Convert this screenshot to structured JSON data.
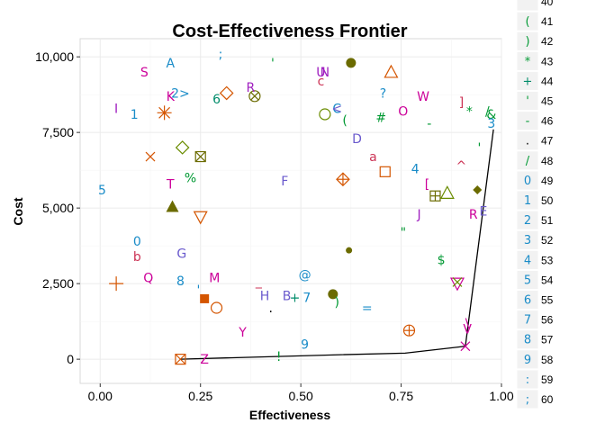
{
  "chart_data": {
    "type": "scatter",
    "title": "Cost-Effectiveness Frontier",
    "xlabel": "Effectiveness",
    "ylabel": "Cost",
    "xlim": [
      -0.05,
      1.0
    ],
    "ylim": [
      -800,
      10600
    ],
    "x_ticks": [
      {
        "value": 0.0,
        "label": "0.00"
      },
      {
        "value": 0.25,
        "label": "0.25"
      },
      {
        "value": 0.5,
        "label": "0.50"
      },
      {
        "value": 0.75,
        "label": "0.75"
      },
      {
        "value": 1.0,
        "label": "1.00"
      }
    ],
    "y_ticks": [
      {
        "value": 0,
        "label": "0"
      },
      {
        "value": 2500,
        "label": "2,500"
      },
      {
        "value": 5000,
        "label": "5,000"
      },
      {
        "value": 7500,
        "label": "7,500"
      },
      {
        "value": 10000,
        "label": "10,000"
      }
    ],
    "grid": true,
    "frontier": [
      {
        "x": 0.2,
        "y": 0
      },
      {
        "x": 0.6,
        "y": 150
      },
      {
        "x": 0.76,
        "y": 200
      },
      {
        "x": 0.91,
        "y": 430
      },
      {
        "x": 0.98,
        "y": 7600
      }
    ],
    "colors": [
      "#cc0099",
      "#1a8cc8",
      "#a020c0",
      "#6a8c00",
      "#d45500",
      "#008c6a",
      "#6a5acd",
      "#009933",
      "#cc3355",
      "#6b6b00"
    ],
    "points": [
      {
        "x": 0.11,
        "y": 9500,
        "glyph": "S",
        "color": "#cc0099"
      },
      {
        "x": 0.175,
        "y": 9800,
        "glyph": "A",
        "color": "#1a8cc8"
      },
      {
        "x": 0.3,
        "y": 10100,
        "glyph": ";",
        "color": "#1a8cc8"
      },
      {
        "x": 0.43,
        "y": 9800,
        "glyph": "'",
        "color": "#009933"
      },
      {
        "x": 0.55,
        "y": 9500,
        "glyph": "U",
        "color": "#a020c0"
      },
      {
        "x": 0.56,
        "y": 9500,
        "glyph": "N",
        "color": "#a020c0"
      },
      {
        "x": 0.55,
        "y": 9200,
        "glyph": "c",
        "color": "#cc3355"
      },
      {
        "x": 0.04,
        "y": 8300,
        "glyph": "I",
        "color": "#a020c0"
      },
      {
        "x": 0.085,
        "y": 8100,
        "glyph": "1",
        "color": "#1a8cc8"
      },
      {
        "x": 0.175,
        "y": 8700,
        "glyph": "K",
        "color": "#cc0099"
      },
      {
        "x": 0.2,
        "y": 8800,
        "glyph": "2>",
        "color": "#1a8cc8"
      },
      {
        "x": 0.29,
        "y": 8600,
        "glyph": "6",
        "color": "#008c6a"
      },
      {
        "x": 0.375,
        "y": 9000,
        "glyph": "R",
        "color": "#a020c0"
      },
      {
        "x": 0.59,
        "y": 8300,
        "glyph": "C",
        "color": "#1a8cc8"
      },
      {
        "x": 0.59,
        "y": 8300,
        "glyph": "<",
        "color": "#6a5acd"
      },
      {
        "x": 0.61,
        "y": 7900,
        "glyph": "(",
        "color": "#009933"
      },
      {
        "x": 0.64,
        "y": 7300,
        "glyph": "D",
        "color": "#6a5acd"
      },
      {
        "x": 0.705,
        "y": 8800,
        "glyph": "?",
        "color": "#1a8cc8"
      },
      {
        "x": 0.7,
        "y": 8000,
        "glyph": "#",
        "color": "#009933"
      },
      {
        "x": 0.805,
        "y": 8700,
        "glyph": "W",
        "color": "#cc0099"
      },
      {
        "x": 0.755,
        "y": 8200,
        "glyph": "O",
        "color": "#cc0099"
      },
      {
        "x": 0.82,
        "y": 7800,
        "glyph": "-",
        "color": "#009933"
      },
      {
        "x": 0.9,
        "y": 8500,
        "glyph": "]",
        "color": "#cc3355"
      },
      {
        "x": 0.92,
        "y": 8200,
        "glyph": "*",
        "color": "#009933"
      },
      {
        "x": 0.965,
        "y": 8200,
        "glyph": "/",
        "color": "#009933"
      },
      {
        "x": 0.975,
        "y": 8100,
        "glyph": "&",
        "color": "#009933"
      },
      {
        "x": 0.975,
        "y": 7800,
        "glyph": "3",
        "color": "#1a8cc8"
      },
      {
        "x": 0.945,
        "y": 7000,
        "glyph": "'",
        "color": "#009933"
      },
      {
        "x": 0.68,
        "y": 6700,
        "glyph": "a",
        "color": "#cc3355"
      },
      {
        "x": 0.785,
        "y": 6300,
        "glyph": "4",
        "color": "#1a8cc8"
      },
      {
        "x": 0.9,
        "y": 6400,
        "glyph": "^",
        "color": "#cc3355"
      },
      {
        "x": 0.815,
        "y": 5800,
        "glyph": "[",
        "color": "#cc0099"
      },
      {
        "x": 0.005,
        "y": 5600,
        "glyph": "5",
        "color": "#1a8cc8"
      },
      {
        "x": 0.175,
        "y": 5800,
        "glyph": "T",
        "color": "#cc0099"
      },
      {
        "x": 0.225,
        "y": 6000,
        "glyph": "%",
        "color": "#009933"
      },
      {
        "x": 0.46,
        "y": 5900,
        "glyph": "F",
        "color": "#6a5acd"
      },
      {
        "x": 0.795,
        "y": 4800,
        "glyph": "J",
        "color": "#a020c0"
      },
      {
        "x": 0.93,
        "y": 4800,
        "glyph": "R",
        "color": "#cc0099"
      },
      {
        "x": 0.955,
        "y": 4900,
        "glyph": "E",
        "color": "#6a5acd"
      },
      {
        "x": 0.755,
        "y": 4200,
        "glyph": "\"",
        "color": "#009933"
      },
      {
        "x": 0.092,
        "y": 3900,
        "glyph": "0",
        "color": "#1a8cc8"
      },
      {
        "x": 0.092,
        "y": 3400,
        "glyph": "b",
        "color": "#cc3355"
      },
      {
        "x": 0.203,
        "y": 3500,
        "glyph": "G",
        "color": "#6a5acd"
      },
      {
        "x": 0.85,
        "y": 3300,
        "glyph": "$",
        "color": "#009933"
      },
      {
        "x": 0.12,
        "y": 2700,
        "glyph": "Q",
        "color": "#cc0099"
      },
      {
        "x": 0.2,
        "y": 2600,
        "glyph": "8",
        "color": "#1a8cc8"
      },
      {
        "x": 0.285,
        "y": 2700,
        "glyph": "M",
        "color": "#cc0099"
      },
      {
        "x": 0.395,
        "y": 2600,
        "glyph": "_",
        "color": "#cc3355"
      },
      {
        "x": 0.51,
        "y": 2800,
        "glyph": "@",
        "color": "#1a8cc8"
      },
      {
        "x": 0.245,
        "y": 2300,
        "glyph": "'",
        "color": "#1a8cc8"
      },
      {
        "x": 0.41,
        "y": 2100,
        "glyph": "H",
        "color": "#6a5acd"
      },
      {
        "x": 0.465,
        "y": 2100,
        "glyph": "B",
        "color": "#6a5acd"
      },
      {
        "x": 0.485,
        "y": 2050,
        "glyph": "+",
        "color": "#008c6a"
      },
      {
        "x": 0.515,
        "y": 2050,
        "glyph": "7",
        "color": "#1a8cc8"
      },
      {
        "x": 0.59,
        "y": 1900,
        "glyph": ")",
        "color": "#009933"
      },
      {
        "x": 0.665,
        "y": 1700,
        "glyph": "=",
        "color": "#1a8cc8"
      },
      {
        "x": 0.425,
        "y": 1700,
        "glyph": ".",
        "color": "#000000"
      },
      {
        "x": 0.355,
        "y": 900,
        "glyph": "Y",
        "color": "#cc0099"
      },
      {
        "x": 0.51,
        "y": 500,
        "glyph": "9",
        "color": "#1a8cc8"
      },
      {
        "x": 0.445,
        "y": 100,
        "glyph": "!",
        "color": "#009933"
      },
      {
        "x": 0.26,
        "y": 0,
        "glyph": "Z",
        "color": "#cc0099"
      },
      {
        "x": 0.915,
        "y": 1000,
        "glyph": "V",
        "color": "#cc0099"
      },
      {
        "x": 0.915,
        "y": 1200,
        "glyph": "\\",
        "color": "#cc0099"
      }
    ],
    "markers": [
      {
        "x": 0.625,
        "y": 9800,
        "shape": "filled-circle",
        "color": "#6b6b00"
      },
      {
        "x": 0.725,
        "y": 9500,
        "shape": "open-triangle",
        "color": "#d45500"
      },
      {
        "x": 0.315,
        "y": 8800,
        "shape": "open-diamond",
        "color": "#d45500"
      },
      {
        "x": 0.385,
        "y": 8700,
        "shape": "circle-x",
        "color": "#6b6b00"
      },
      {
        "x": 0.16,
        "y": 8150,
        "shape": "asterisk",
        "color": "#d45500"
      },
      {
        "x": 0.56,
        "y": 8100,
        "shape": "open-circle",
        "color": "#6a8c00"
      },
      {
        "x": 0.125,
        "y": 6700,
        "shape": "x",
        "color": "#d45500"
      },
      {
        "x": 0.205,
        "y": 7000,
        "shape": "open-diamond",
        "color": "#6a8c00"
      },
      {
        "x": 0.25,
        "y": 6700,
        "shape": "square-x",
        "color": "#6b6b00"
      },
      {
        "x": 0.605,
        "y": 5950,
        "shape": "diamond-plus",
        "color": "#d45500"
      },
      {
        "x": 0.71,
        "y": 6200,
        "shape": "open-square",
        "color": "#d45500"
      },
      {
        "x": 0.18,
        "y": 5050,
        "shape": "filled-triangle",
        "color": "#6b6b00"
      },
      {
        "x": 0.25,
        "y": 4700,
        "shape": "open-triangle-down",
        "color": "#d45500"
      },
      {
        "x": 0.835,
        "y": 5400,
        "shape": "square-plus",
        "color": "#6b6b00"
      },
      {
        "x": 0.865,
        "y": 5500,
        "shape": "open-triangle",
        "color": "#6a8c00"
      },
      {
        "x": 0.94,
        "y": 5600,
        "shape": "filled-diamond",
        "color": "#6b6b00"
      },
      {
        "x": 0.62,
        "y": 3600,
        "shape": "small-dot",
        "color": "#6b6b00"
      },
      {
        "x": 0.04,
        "y": 2500,
        "shape": "plus",
        "color": "#d45500"
      },
      {
        "x": 0.26,
        "y": 2000,
        "shape": "filled-square",
        "color": "#d45500"
      },
      {
        "x": 0.29,
        "y": 1700,
        "shape": "open-circle",
        "color": "#d45500"
      },
      {
        "x": 0.58,
        "y": 2150,
        "shape": "filled-circle",
        "color": "#6b6b00"
      },
      {
        "x": 0.89,
        "y": 2500,
        "shape": "open-triangle-down",
        "color": "#cc0099"
      },
      {
        "x": 0.89,
        "y": 2550,
        "shape": "x",
        "color": "#6a8c00"
      },
      {
        "x": 0.77,
        "y": 950,
        "shape": "circle-plus",
        "color": "#d45500"
      },
      {
        "x": 0.2,
        "y": 0,
        "shape": "square-x",
        "color": "#d45500"
      },
      {
        "x": 0.91,
        "y": 430,
        "shape": "x",
        "color": "#cc0099"
      }
    ],
    "legend": {
      "placement": "right",
      "entries": [
        {
          "glyph": "'",
          "label": "40",
          "color": "#1a8cc8"
        },
        {
          "glyph": "(",
          "label": "41",
          "color": "#009933"
        },
        {
          "glyph": ")",
          "label": "42",
          "color": "#009933"
        },
        {
          "glyph": "*",
          "label": "43",
          "color": "#009933"
        },
        {
          "glyph": "+",
          "label": "44",
          "color": "#008c6a"
        },
        {
          "glyph": "'",
          "label": "45",
          "color": "#009933"
        },
        {
          "glyph": "-",
          "label": "46",
          "color": "#009933"
        },
        {
          "glyph": ".",
          "label": "47",
          "color": "#000000"
        },
        {
          "glyph": "/",
          "label": "48",
          "color": "#009933"
        },
        {
          "glyph": "0",
          "label": "49",
          "color": "#1a8cc8"
        },
        {
          "glyph": "1",
          "label": "50",
          "color": "#1a8cc8"
        },
        {
          "glyph": "2",
          "label": "51",
          "color": "#1a8cc8"
        },
        {
          "glyph": "3",
          "label": "52",
          "color": "#1a8cc8"
        },
        {
          "glyph": "4",
          "label": "53",
          "color": "#1a8cc8"
        },
        {
          "glyph": "5",
          "label": "54",
          "color": "#1a8cc8"
        },
        {
          "glyph": "6",
          "label": "55",
          "color": "#1a8cc8"
        },
        {
          "glyph": "7",
          "label": "56",
          "color": "#1a8cc8"
        },
        {
          "glyph": "8",
          "label": "57",
          "color": "#1a8cc8"
        },
        {
          "glyph": "9",
          "label": "58",
          "color": "#1a8cc8"
        },
        {
          "glyph": ":",
          "label": "59",
          "color": "#1a8cc8"
        },
        {
          "glyph": ";",
          "label": "60",
          "color": "#1a8cc8"
        }
      ]
    }
  }
}
